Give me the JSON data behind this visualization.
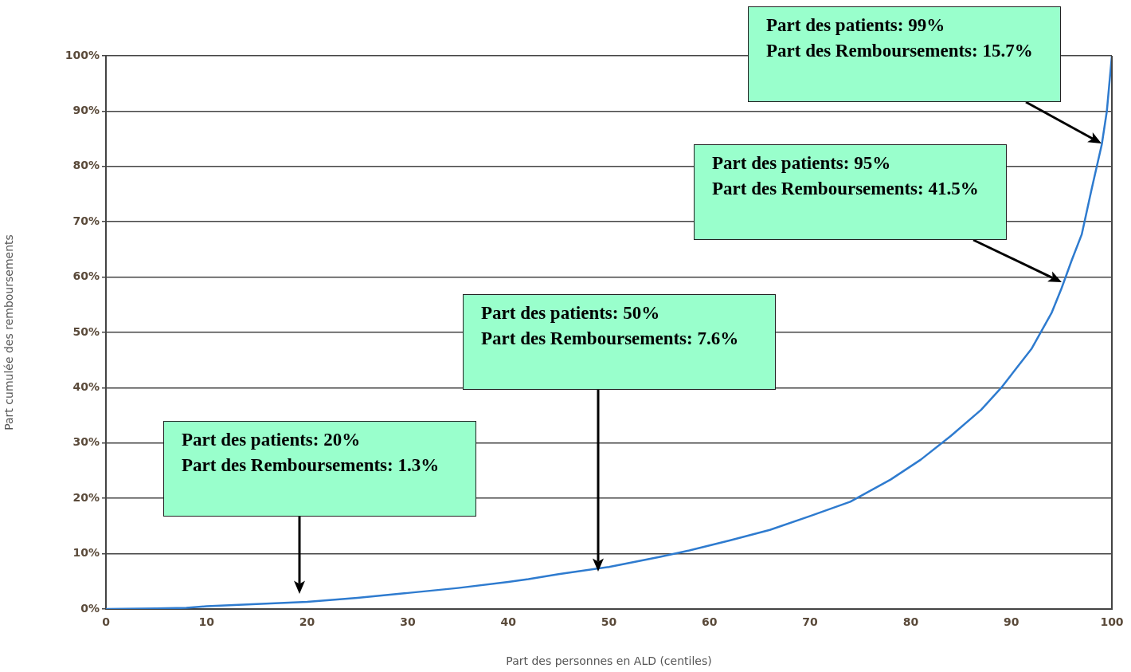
{
  "chart_data": {
    "type": "line",
    "xlabel": "Part des personnes en ALD (centiles)",
    "ylabel": "Part cumulée des remboursements",
    "series": [
      {
        "color": "#2e7bcf",
        "x": [
          0,
          5,
          8,
          10,
          15,
          20,
          25,
          30,
          35,
          40,
          42,
          45,
          50,
          55,
          58,
          62,
          66,
          70,
          74,
          78,
          81,
          84,
          87,
          89,
          92,
          94,
          95,
          96,
          97,
          98,
          99,
          99.5,
          100
        ],
        "values": [
          0,
          0.1,
          0.2,
          0.5,
          0.9,
          1.3,
          2.0,
          2.9,
          3.8,
          4.9,
          5.4,
          6.3,
          7.6,
          9.4,
          10.6,
          12.4,
          14.3,
          16.8,
          19.4,
          23.4,
          27,
          31.3,
          36,
          40,
          47,
          53.5,
          58,
          63,
          67.7,
          76,
          84,
          90,
          100
        ]
      }
    ],
    "xlim": [
      0,
      100
    ],
    "xticks": [
      0,
      10,
      20,
      30,
      40,
      50,
      60,
      70,
      80,
      90,
      100
    ],
    "ylim": [
      0,
      100
    ],
    "yticks": [
      {
        "value": 0,
        "label": "0%"
      },
      {
        "value": 10,
        "label": "10%"
      },
      {
        "value": 20,
        "label": "20%"
      },
      {
        "value": 30,
        "label": "30%"
      },
      {
        "value": 40,
        "label": "40%"
      },
      {
        "value": 50,
        "label": "50%"
      },
      {
        "value": 60,
        "label": "60%"
      },
      {
        "value": 70,
        "label": "70%"
      },
      {
        "value": 80,
        "label": "80%"
      },
      {
        "value": 90,
        "label": "90%"
      },
      {
        "value": 100,
        "label": "100%"
      }
    ],
    "grid": "y",
    "legend": false,
    "marker": "none",
    "line_style": "solid",
    "annotations": [
      "Part des patients: 20%\nPart des Remboursements: 1.3%",
      "Part des patients: 50%\nPart des Remboursements: 7.6%",
      "Part des patients: 95%\nPart des Remboursements: 41.5%",
      "Part des patients: 99%\nPart des Remboursements: 15.7%"
    ]
  }
}
